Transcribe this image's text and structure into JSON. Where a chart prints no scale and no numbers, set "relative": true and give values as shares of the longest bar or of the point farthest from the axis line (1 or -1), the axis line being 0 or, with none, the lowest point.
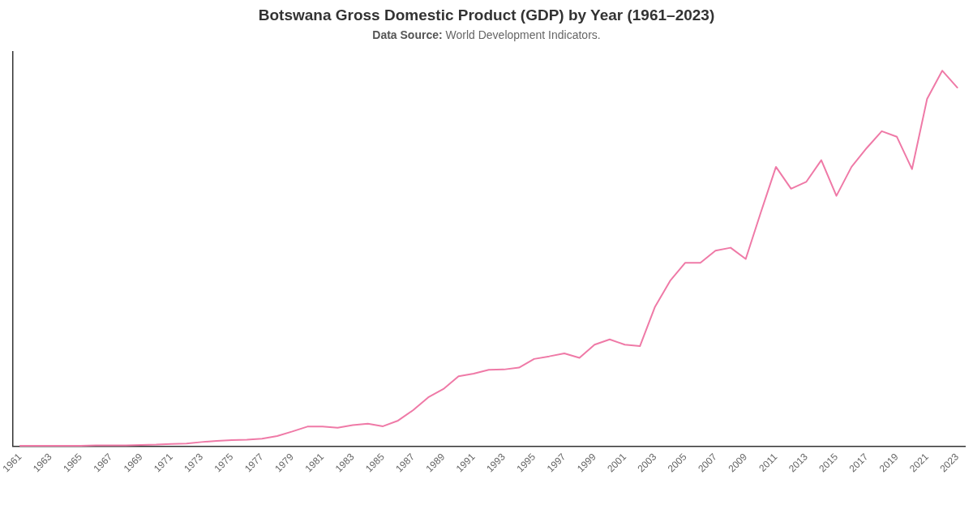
{
  "chart_data": {
    "type": "line",
    "title": "Botswana Gross Domestic Product (GDP) by Year (1961–2023)",
    "subtitle": "Data Source: World Development Indicators.",
    "categories": [
      "1961",
      null,
      "1963",
      null,
      "1965",
      null,
      "1967",
      null,
      "1969",
      null,
      "1971",
      null,
      "1973",
      null,
      "1975",
      null,
      "1977",
      null,
      "1979",
      null,
      "1981",
      null,
      "1983",
      null,
      "1985",
      null,
      "1987",
      null,
      "1989",
      null,
      "1991",
      null,
      "1993",
      null,
      "1995",
      null,
      "1997",
      null,
      "1999",
      null,
      "2001",
      null,
      "2003",
      null,
      "2005",
      null,
      "2007",
      null,
      "2009",
      null,
      "2011",
      null,
      "2013",
      null,
      "2015",
      null,
      "2017",
      null,
      "2019",
      null,
      "2021",
      null,
      "2023"
    ],
    "values": [
      0.002,
      0.002,
      0.002,
      0.002,
      0.002,
      0.003,
      0.003,
      0.003,
      0.004,
      0.005,
      0.007,
      0.008,
      0.012,
      0.015,
      0.017,
      0.018,
      0.021,
      0.028,
      0.04,
      0.053,
      0.053,
      0.05,
      0.057,
      0.061,
      0.054,
      0.069,
      0.097,
      0.131,
      0.153,
      0.187,
      0.194,
      0.204,
      0.205,
      0.21,
      0.233,
      0.24,
      0.248,
      0.236,
      0.271,
      0.285,
      0.271,
      0.267,
      0.372,
      0.441,
      0.489,
      0.489,
      0.521,
      0.529,
      0.499,
      0.623,
      0.744,
      0.686,
      0.704,
      0.762,
      0.667,
      0.744,
      0.794,
      0.839,
      0.824,
      0.738,
      0.925,
      1,
      0.955
    ],
    "color": "#ef7aa7",
    "relative": true
  }
}
